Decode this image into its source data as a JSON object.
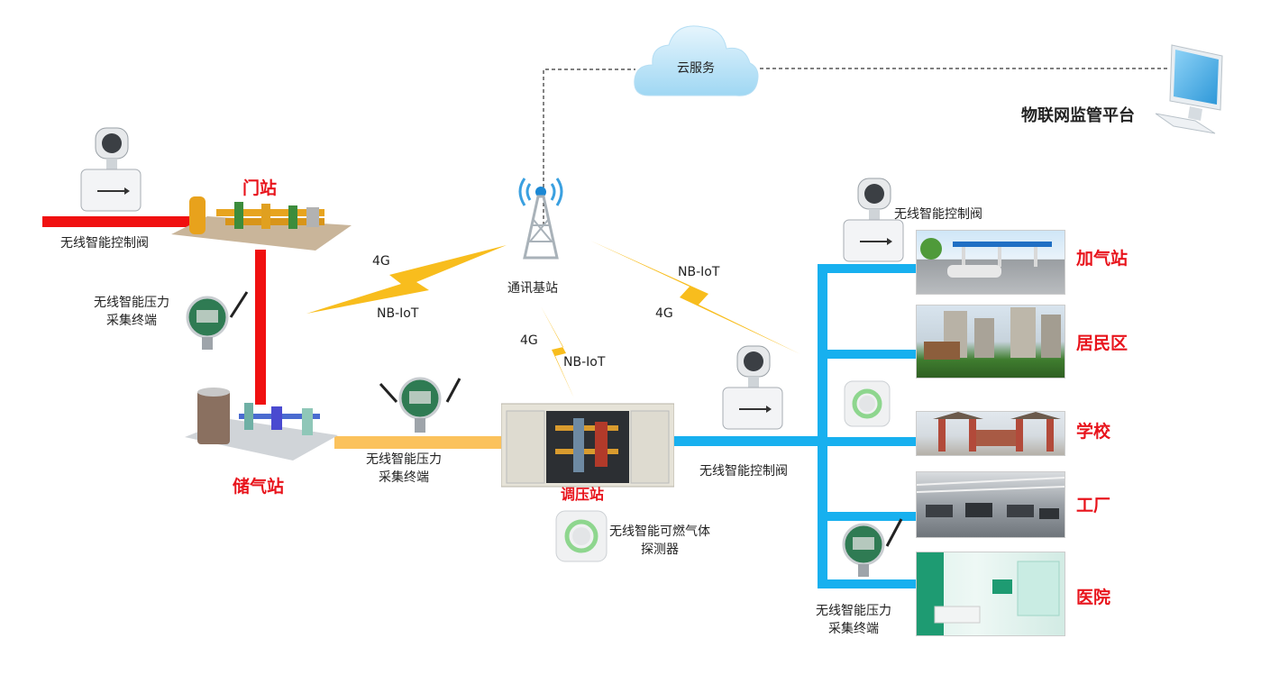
{
  "cloud": {
    "label": "云服务"
  },
  "platform": {
    "label": "物联网监管平台"
  },
  "tower": {
    "label": "通讯基站"
  },
  "stations": {
    "gate": "门站",
    "storage": "储气站",
    "regulator": "调压站"
  },
  "devices": {
    "valve_gate": "无线智能控制阀",
    "pressure_left": [
      "无线智能压力",
      "采集终端"
    ],
    "pressure_mid": [
      "无线智能压力",
      "采集终端"
    ],
    "valve_right_top": "无线智能控制阀",
    "valve_right_mid": "无线智能控制阀",
    "gas_detector": [
      "无线智能可燃气体",
      "探测器"
    ],
    "pressure_right": [
      "无线智能压力",
      "采集终端"
    ]
  },
  "links": {
    "left_top": "4G",
    "left_bottom": "NB-IoT",
    "down_top": "4G",
    "down_bottom": "NB-IoT",
    "right_top": "NB-IoT",
    "right_bottom": "4G"
  },
  "consumers": [
    "加气站",
    "居民区",
    "学校",
    "工厂",
    "医院"
  ],
  "colors": {
    "red_pipe": "#f01010",
    "yellow_pipe": "#fbc25c",
    "blue_pipe": "#17b0ef",
    "signal": "#f8bd1d",
    "accent_red": "#e8141c"
  }
}
